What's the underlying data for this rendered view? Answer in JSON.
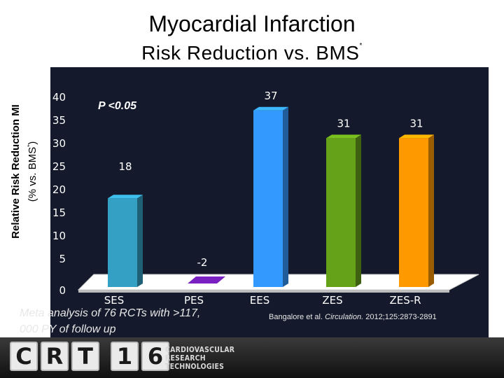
{
  "title": "Myocardial Infarction",
  "subtitle": "Risk Reduction vs. BMS",
  "subtitle_mark": "*",
  "ylabel_line1": "Relative Risk Reduction MI",
  "ylabel_line2_pre": "(% vs. BMS",
  "ylabel_line2_mark": "*",
  "ylabel_line2_post": ")",
  "significance": "P <0.05",
  "meta_note": "Meta analysis of 76 RCTs with >117, 000 PY of follow up",
  "citation_pre": "Bangalore et al. ",
  "citation_journal": "Circulation.",
  "citation_post": " 2012;125:2873-2891",
  "footer": {
    "logo_chars": [
      "C",
      "R",
      "T",
      "1",
      "6"
    ],
    "brand_lines": [
      "CARDIOVASCULAR",
      "RESEARCH",
      "TECHNOLOGIES"
    ]
  },
  "chart_data": {
    "type": "bar",
    "categories": [
      "SES",
      "PES",
      "EES",
      "ZES",
      "ZES-R"
    ],
    "values": [
      18,
      -2,
      37,
      31,
      31
    ],
    "data_labels": [
      "18",
      "-2",
      "37",
      "31",
      "31"
    ],
    "colors": [
      "#33a0c4",
      "#7a1fc2",
      "#3399ff",
      "#66a11a",
      "#ff9900"
    ],
    "yticks": [
      "0",
      "5",
      "10",
      "15",
      "20",
      "25",
      "30",
      "35",
      "40"
    ],
    "ylim": [
      0,
      40
    ],
    "ylabel": "Relative Risk Reduction MI (% vs. BMS*)",
    "background": "#14192b",
    "grid": false
  }
}
